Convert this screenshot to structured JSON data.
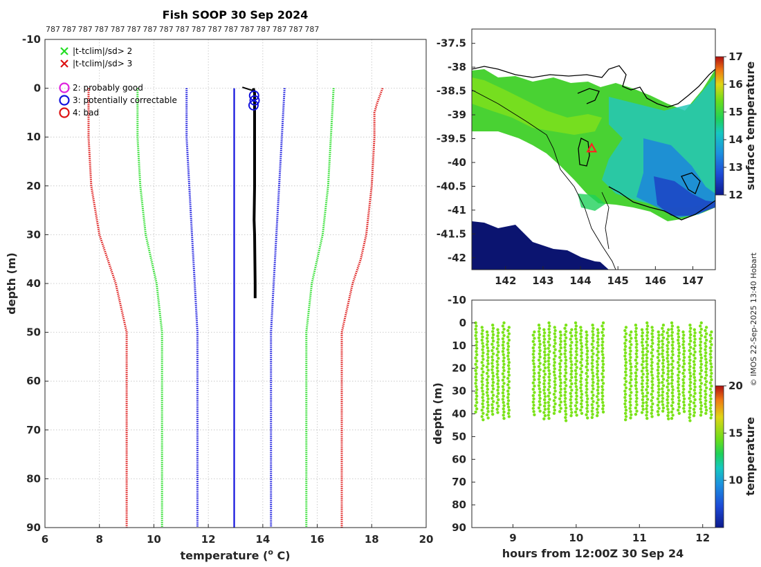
{
  "page": {
    "title": "Fish SOOP 30 Sep 2024",
    "credit": "© IMOS 22-Sep-2025 13:40 Hobart"
  },
  "chart_data": [
    {
      "type": "line",
      "name": "temperature-depth profile",
      "xlabel_prefix": "temperature (",
      "xlabel_sup": "o",
      "xlabel_suffix": " C)",
      "ylabel": "depth (m)",
      "xlim": [
        6,
        20
      ],
      "ylim": [
        -10,
        90
      ],
      "xticks": [
        "6",
        "8",
        "10",
        "12",
        "14",
        "16",
        "18",
        "20"
      ],
      "yticks": [
        "-10",
        "0",
        "10",
        "20",
        "30",
        "40",
        "50",
        "60",
        "70",
        "80",
        "90"
      ],
      "top_labels": [
        "787",
        "787",
        "787",
        "787",
        "787",
        "787",
        "787",
        "787",
        "787",
        "787",
        "787",
        "787",
        "787",
        "787",
        "787",
        "787",
        "787"
      ],
      "legend": [
        {
          "marker": "x",
          "color": "#22dd22",
          "label": "|t-tclim|/sd> 2"
        },
        {
          "marker": "x",
          "color": "#dd1111",
          "label": "|t-tclim|/sd> 3"
        },
        {
          "marker": "o",
          "color": "#dd22dd",
          "label": "2: probably good"
        },
        {
          "marker": "o",
          "color": "#1111dd",
          "label": "3: potentially correctable"
        },
        {
          "marker": "o",
          "color": "#dd1111",
          "label": "4: bad"
        }
      ],
      "series": [
        {
          "name": "clim -3sd",
          "color": "#dd1111",
          "depth": [
            0,
            5,
            10,
            20,
            30,
            35,
            40,
            45,
            50,
            90
          ],
          "temp": [
            7.6,
            7.6,
            7.6,
            7.7,
            8.0,
            8.3,
            8.6,
            8.8,
            9.0,
            9.0
          ]
        },
        {
          "name": "clim -2sd",
          "color": "#22dd22",
          "depth": [
            0,
            5,
            10,
            20,
            30,
            35,
            40,
            45,
            50,
            90
          ],
          "temp": [
            9.4,
            9.4,
            9.4,
            9.5,
            9.7,
            9.9,
            10.1,
            10.2,
            10.3,
            10.3
          ]
        },
        {
          "name": "clim -1sd",
          "color": "#1111dd",
          "depth": [
            0,
            10,
            20,
            30,
            40,
            50,
            90
          ],
          "temp": [
            11.2,
            11.2,
            11.3,
            11.4,
            11.5,
            11.6,
            11.6
          ]
        },
        {
          "name": "clim mean",
          "color": "#1111dd",
          "depth": [
            0,
            2,
            5,
            10,
            20,
            30,
            40,
            50,
            60,
            90
          ],
          "temp": [
            12.95,
            12.95,
            12.95,
            12.95,
            12.95,
            12.95,
            12.95,
            12.95,
            12.95,
            12.95
          ]
        },
        {
          "name": "clim +1sd",
          "color": "#1111dd",
          "depth": [
            0,
            10,
            20,
            30,
            40,
            50,
            90
          ],
          "temp": [
            14.8,
            14.7,
            14.6,
            14.5,
            14.4,
            14.3,
            14.3
          ]
        },
        {
          "name": "clim +2sd",
          "color": "#22dd22",
          "depth": [
            0,
            10,
            20,
            30,
            35,
            40,
            50,
            90
          ],
          "temp": [
            16.6,
            16.5,
            16.4,
            16.2,
            16.0,
            15.8,
            15.6,
            15.6
          ]
        },
        {
          "name": "clim +3sd",
          "color": "#dd1111",
          "depth": [
            0,
            3,
            5,
            10,
            20,
            30,
            35,
            40,
            45,
            50,
            90
          ],
          "temp": [
            18.4,
            18.2,
            18.1,
            18.1,
            18.0,
            17.8,
            17.6,
            17.3,
            17.1,
            16.9,
            16.9
          ]
        }
      ],
      "profile": {
        "name": "observed",
        "color": "#000000",
        "depth": [
          0,
          1,
          3,
          10,
          20,
          27,
          30,
          40,
          43
        ],
        "temp": [
          13.65,
          13.7,
          13.7,
          13.7,
          13.7,
          13.68,
          13.7,
          13.72,
          13.72
        ],
        "surface_tail": {
          "depth": [
            -0.2,
            0.6
          ],
          "temp": [
            13.25,
            13.7
          ]
        }
      },
      "flagged_points": [
        {
          "flag": 3,
          "depth": 1.5,
          "temp": 13.68
        },
        {
          "flag": 3,
          "depth": 2.5,
          "temp": 13.7
        },
        {
          "flag": 3,
          "depth": 3.5,
          "temp": 13.66
        }
      ]
    },
    {
      "type": "heatmap",
      "name": "sea surface temperature map",
      "colorbar_label": "surface temperature",
      "xticks": [
        "142",
        "143",
        "144",
        "145",
        "146",
        "147"
      ],
      "yticks": [
        "-37.5",
        "-38",
        "-38.5",
        "-39",
        "-39.5",
        "-40",
        "-40.5",
        "-41",
        "-41.5",
        "-42"
      ],
      "xlim": [
        141.1,
        147.6
      ],
      "ylim": [
        -42.25,
        -37.2
      ],
      "clim": [
        12,
        17
      ],
      "cbar_ticks": [
        "12",
        "13",
        "14",
        "15",
        "16",
        "17"
      ],
      "marker": {
        "lon": 144.3,
        "lat": -39.7,
        "color": "#ff2222"
      }
    },
    {
      "type": "scatter",
      "name": "depth-time section",
      "xlabel": "hours from 12:00Z 30 Sep 24",
      "ylabel": "depth (m)",
      "colorbar_label": "temperature",
      "xlim": [
        8.35,
        12.2
      ],
      "ylim": [
        -10,
        90
      ],
      "xticks": [
        "9",
        "10",
        "11",
        "12"
      ],
      "yticks": [
        "-10",
        "0",
        "10",
        "20",
        "30",
        "40",
        "50",
        "60",
        "70",
        "80",
        "90"
      ],
      "clim": [
        5,
        20
      ],
      "cbar_ticks": [
        "10",
        "15",
        "20"
      ],
      "point_temperature": 13.7,
      "point_color": "#7be31a",
      "cast_hours": [
        8.42,
        8.52,
        8.6,
        8.68,
        8.76,
        8.85,
        8.93,
        9.33,
        9.42,
        9.5,
        9.57,
        9.66,
        9.75,
        9.83,
        9.92,
        10.0,
        10.08,
        10.17,
        10.26,
        10.34,
        10.42,
        10.78,
        10.86,
        10.95,
        11.05,
        11.12,
        11.2,
        11.3,
        11.37,
        11.45,
        11.52,
        11.62,
        11.7,
        11.8,
        11.87,
        11.97,
        12.05,
        12.13
      ]
    }
  ]
}
